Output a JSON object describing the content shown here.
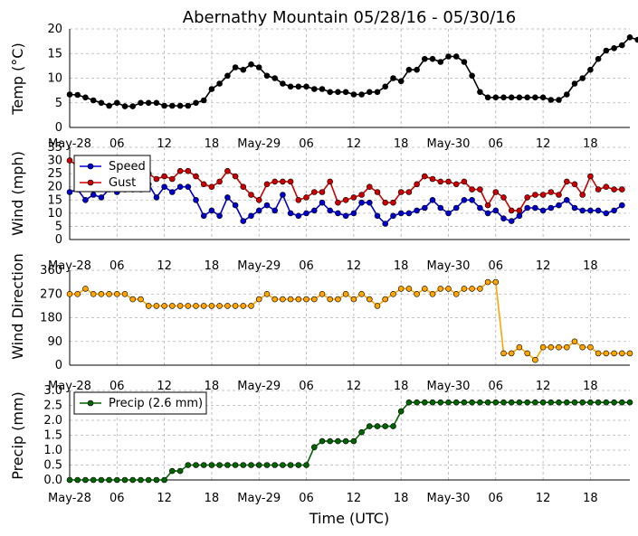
{
  "title": "Abernathy Mountain 05/28/16 - 05/30/16",
  "xlabel": "Time (UTC)",
  "x_tick_labels": [
    "May-28",
    "06",
    "12",
    "18",
    "May-29",
    "06",
    "12",
    "18",
    "May-30",
    "06",
    "12",
    "18"
  ],
  "x_tick_hours": [
    0,
    6,
    12,
    18,
    24,
    30,
    36,
    42,
    48,
    54,
    60,
    66
  ],
  "x_range_hours": [
    0,
    71
  ],
  "sample_interval_hours": 1,
  "chart_data": [
    {
      "type": "line",
      "ylabel": "Temp (°C)",
      "ylim": [
        0,
        20
      ],
      "yticks": [
        0,
        5,
        10,
        15,
        20
      ],
      "ytick_labels": [
        "0",
        "5",
        "10",
        "15",
        "20"
      ],
      "grid": true,
      "series": [
        {
          "color": "#000000",
          "values": [
            6.7,
            6.6,
            6.1,
            5.5,
            5.0,
            4.4,
            5.0,
            4.3,
            4.3,
            5.0,
            5.0,
            5.0,
            4.4,
            4.4,
            4.4,
            4.4,
            5.0,
            5.5,
            7.8,
            8.9,
            10.5,
            12.2,
            11.7,
            12.8,
            12.2,
            10.5,
            10.0,
            8.9,
            8.3,
            8.3,
            8.3,
            7.8,
            7.8,
            7.2,
            7.2,
            7.2,
            6.7,
            6.7,
            7.2,
            7.2,
            8.3,
            10.0,
            9.4,
            11.7,
            11.7,
            13.9,
            13.9,
            13.3,
            14.4,
            14.4,
            13.3,
            10.5,
            7.2,
            6.1,
            6.1,
            6.1,
            6.1,
            6.1,
            6.1,
            6.1,
            6.1,
            5.6,
            5.6,
            6.7,
            8.9,
            10.0,
            11.7,
            13.9,
            15.6,
            16.1,
            16.7,
            18.3,
            17.8
          ]
        }
      ]
    },
    {
      "type": "line",
      "ylabel": "Wind (mph)",
      "ylim": [
        0,
        35
      ],
      "yticks": [
        0,
        5,
        10,
        15,
        20,
        25,
        30,
        35
      ],
      "ytick_labels": [
        "0",
        "5",
        "10",
        "15",
        "20",
        "25",
        "30",
        "35"
      ],
      "grid": true,
      "legend": "upper-left",
      "series": [
        {
          "name": "Speed",
          "color": "#0000cc",
          "values": [
            18,
            19,
            15,
            17,
            16,
            19,
            18,
            19,
            19,
            19,
            21,
            16,
            20,
            18,
            20,
            20,
            15,
            9,
            11,
            9,
            16,
            13,
            7,
            9,
            11,
            13,
            11,
            17,
            10,
            9,
            10,
            11,
            14,
            11,
            10,
            9,
            10,
            14,
            14,
            9,
            6,
            9,
            10,
            10,
            11,
            12,
            15,
            12,
            10,
            12,
            15,
            15,
            12,
            10,
            11,
            8,
            7,
            9,
            12,
            12,
            11,
            12,
            13,
            15,
            12,
            11,
            11,
            11,
            10,
            11,
            13
          ]
        },
        {
          "name": "Gust",
          "color": "#cc0000",
          "values": [
            30,
            28,
            27,
            26,
            26,
            25,
            24,
            25,
            24,
            24,
            25,
            23,
            24,
            23,
            26,
            26,
            24,
            21,
            20,
            22,
            26,
            24,
            20,
            17,
            15,
            21,
            22,
            22,
            22,
            15,
            16,
            18,
            18,
            22,
            14,
            15,
            16,
            17,
            20,
            18,
            14,
            14,
            18,
            18,
            21,
            24,
            23,
            22,
            22,
            21,
            22,
            19,
            19,
            13,
            18,
            16,
            11,
            11,
            16,
            17,
            17,
            18,
            17,
            22,
            21,
            17,
            24,
            19,
            20,
            19,
            19
          ]
        }
      ]
    },
    {
      "type": "line",
      "ylabel": "Wind Direction",
      "ylim": [
        0,
        360
      ],
      "yticks": [
        0,
        90,
        180,
        270,
        360
      ],
      "ytick_labels": [
        "0",
        "90",
        "180",
        "270",
        "360"
      ],
      "grid": true,
      "series": [
        {
          "color": "#ffa500",
          "values": [
            270,
            270,
            290,
            270,
            270,
            270,
            270,
            270,
            250,
            250,
            225,
            225,
            225,
            225,
            225,
            225,
            225,
            225,
            225,
            225,
            225,
            225,
            225,
            225,
            250,
            270,
            250,
            250,
            250,
            250,
            250,
            250,
            270,
            250,
            250,
            270,
            250,
            270,
            250,
            225,
            250,
            270,
            290,
            290,
            270,
            290,
            270,
            290,
            290,
            270,
            290,
            290,
            290,
            315,
            315,
            45,
            45,
            68,
            45,
            20,
            68,
            68,
            68,
            68,
            90,
            68,
            68,
            45,
            45,
            45,
            45,
            45
          ]
        }
      ]
    },
    {
      "type": "line",
      "ylabel": "Precip (mm)",
      "ylim": [
        0,
        3.0
      ],
      "yticks": [
        0.0,
        0.5,
        1.0,
        1.5,
        2.0,
        2.5,
        3.0
      ],
      "ytick_labels": [
        "0.0",
        "0.5",
        "1.0",
        "1.5",
        "2.0",
        "2.5",
        "3.0"
      ],
      "grid": true,
      "legend": "upper-left",
      "series": [
        {
          "name": "Precip (2.6 mm)",
          "color": "#006400",
          "values": [
            0,
            0,
            0,
            0,
            0,
            0,
            0,
            0,
            0,
            0,
            0,
            0,
            0,
            0.3,
            0.3,
            0.5,
            0.5,
            0.5,
            0.5,
            0.5,
            0.5,
            0.5,
            0.5,
            0.5,
            0.5,
            0.5,
            0.5,
            0.5,
            0.5,
            0.5,
            0.5,
            1.1,
            1.3,
            1.3,
            1.3,
            1.3,
            1.3,
            1.6,
            1.8,
            1.8,
            1.8,
            1.8,
            2.3,
            2.6,
            2.6,
            2.6,
            2.6,
            2.6,
            2.6,
            2.6,
            2.6,
            2.6,
            2.6,
            2.6,
            2.6,
            2.6,
            2.6,
            2.6,
            2.6,
            2.6,
            2.6,
            2.6,
            2.6,
            2.6,
            2.6,
            2.6,
            2.6,
            2.6,
            2.6,
            2.6,
            2.6,
            2.6
          ]
        }
      ]
    }
  ]
}
